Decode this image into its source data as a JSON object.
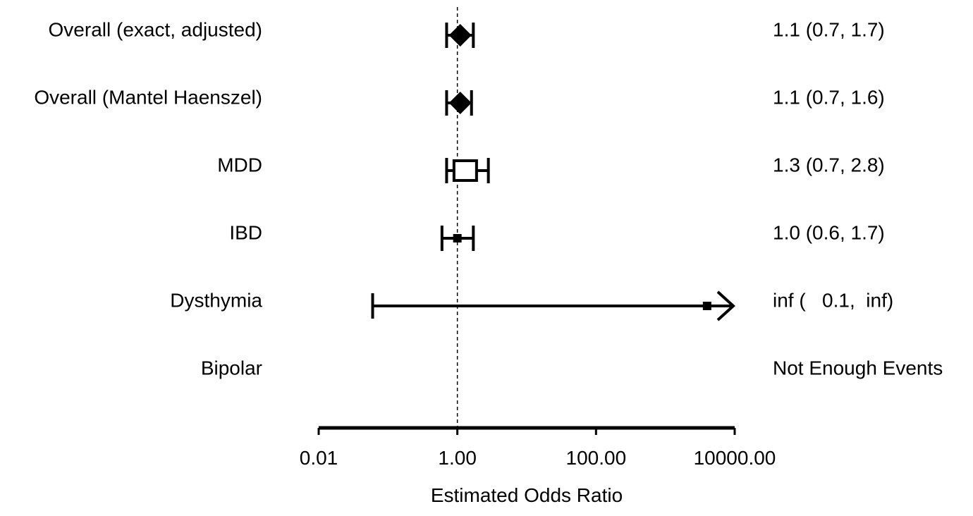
{
  "chart_data": {
    "type": "forest",
    "xlabel": "Estimated Odds Ratio",
    "x_scale": "log",
    "xlim": [
      0.01,
      10000
    ],
    "xticks": [
      0.01,
      1,
      100,
      10000
    ],
    "xtick_labels": [
      "0.01",
      "1.00",
      "100.00",
      "10000.00"
    ],
    "reference_line": 1,
    "rows": [
      {
        "label": "Overall (exact, adjusted)",
        "estimate": 1.1,
        "lower": 0.7,
        "upper": 1.7,
        "marker": "diamond",
        "text": "1.1 (0.7, 1.7)"
      },
      {
        "label": "Overall (Mantel Haenszel)",
        "estimate": 1.1,
        "lower": 0.7,
        "upper": 1.6,
        "marker": "diamond",
        "text": "1.1 (0.7, 1.6)"
      },
      {
        "label": "MDD",
        "estimate": 1.3,
        "lower": 0.7,
        "upper": 2.8,
        "marker": "open-square",
        "text": "1.3 (0.7, 2.8)"
      },
      {
        "label": "IBD",
        "estimate": 1.0,
        "lower": 0.6,
        "upper": 1.7,
        "marker": "small-square",
        "text": "1.0 (0.6, 1.7)"
      },
      {
        "label": "Dysthymia",
        "estimate": 4000,
        "lower": 0.06,
        "upper": null,
        "upper_open": true,
        "marker": "small-square",
        "text": "inf (   0.1,  inf)"
      },
      {
        "label": "Bipolar",
        "estimate": null,
        "lower": null,
        "upper": null,
        "marker": "none",
        "text": "Not Enough Events"
      }
    ]
  }
}
